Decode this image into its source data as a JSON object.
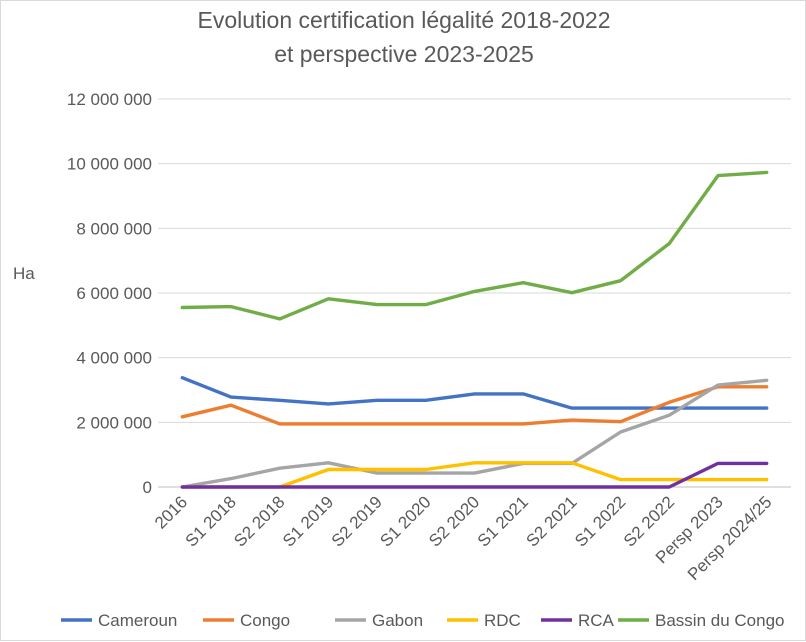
{
  "chart_data": {
    "type": "line",
    "title": [
      "Evolution certification légalité 2018-2022",
      "et perspective 2023-2025"
    ],
    "ylabel": "Ha",
    "ylim": [
      0,
      12000000
    ],
    "yticks": [
      0,
      2000000,
      4000000,
      6000000,
      8000000,
      10000000,
      12000000
    ],
    "ytick_labels": [
      "0",
      "2 000 000",
      "4 000 000",
      "6 000 000",
      "8 000 000",
      "10 000 000",
      "12 000 000"
    ],
    "grid": true,
    "legend_position": "bottom",
    "categories": [
      "2016",
      "S1 2018",
      "S2 2018",
      "S1 2019",
      "S2 2019",
      "S1 2020",
      "S2 2020",
      "S1 2021",
      "S2 2021",
      "S1 2022",
      "S2 2022",
      "Persp 2023",
      "Persp 2024/25"
    ],
    "series": [
      {
        "name": "Cameroun",
        "color": "#4472c4",
        "values": [
          3380000,
          2780000,
          2680000,
          2570000,
          2680000,
          2680000,
          2880000,
          2880000,
          2440000,
          2440000,
          2440000,
          2440000,
          2440000
        ]
      },
      {
        "name": "Congo",
        "color": "#ed7d31",
        "values": [
          2170000,
          2530000,
          1950000,
          1950000,
          1950000,
          1950000,
          1950000,
          1950000,
          2070000,
          2020000,
          2620000,
          3100000,
          3100000
        ]
      },
      {
        "name": "Gabon",
        "color": "#a5a5a5",
        "values": [
          0,
          260000,
          580000,
          750000,
          430000,
          430000,
          430000,
          730000,
          730000,
          1700000,
          2220000,
          3150000,
          3300000
        ]
      },
      {
        "name": "RDC",
        "color": "#ffc000",
        "values": [
          0,
          0,
          0,
          540000,
          540000,
          540000,
          750000,
          750000,
          750000,
          230000,
          230000,
          230000,
          230000
        ]
      },
      {
        "name": "RCA",
        "color": "#7030a0",
        "values": [
          0,
          0,
          0,
          0,
          0,
          0,
          0,
          0,
          0,
          0,
          0,
          730000,
          730000
        ]
      },
      {
        "name": "Bassin du Congo",
        "color": "#70ad47",
        "values": [
          5550000,
          5580000,
          5200000,
          5820000,
          5640000,
          5640000,
          6050000,
          6320000,
          6010000,
          6380000,
          7530000,
          9630000,
          9730000
        ]
      }
    ]
  }
}
